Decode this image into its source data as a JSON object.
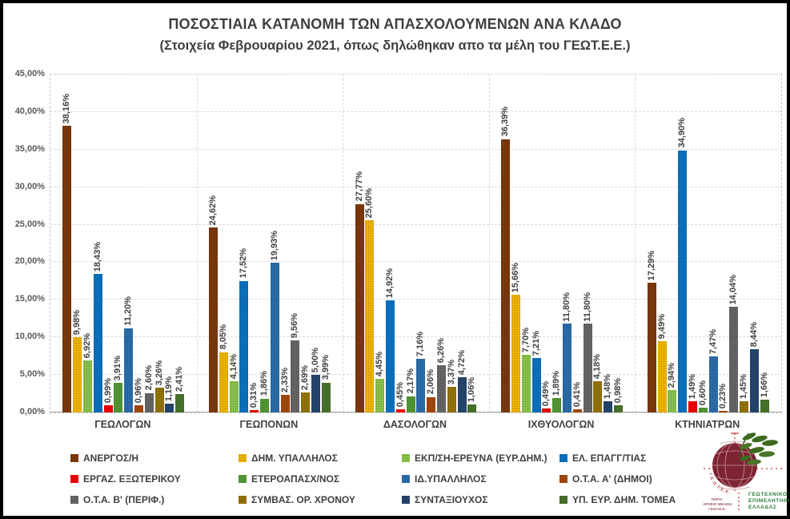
{
  "title": "ΠΟΣΟΣΤΙΑΙΑ ΚΑΤΑΝΟΜΗ ΤΩΝ ΑΠΑΣΧΟΛΟΥΜΕΝΩΝ ΑΝΑ ΚΛΑΔΟ",
  "subtitle": "(Στοιχεία Φεβρουαρίου 2021, όπως δηλώθηκαν απο τα μέλη του ΓΕΩΤ.Ε.Ε.)",
  "chart_data": {
    "type": "bar",
    "categories": [
      "ΓΕΩΛΟΓΩΝ",
      "ΓΕΩΠΟΝΩΝ",
      "ΔΑΣΟΛΟΓΩΝ",
      "ΙΧΘΥΟΛΟΓΩΝ",
      "ΚΤΗΝΙΑΤΡΩΝ"
    ],
    "series": [
      {
        "name": "ΑΝΕΡΓΟΣ/Η",
        "color": "#843C0C",
        "values": [
          38.16,
          24.62,
          27.77,
          36.39,
          17.29
        ]
      },
      {
        "name": "ΔΗΜ. ΥΠΑΛΛΗΛΟΣ",
        "color": "#FFC000",
        "values": [
          9.98,
          8.05,
          25.6,
          15.66,
          9.49
        ]
      },
      {
        "name": "ΕΚΠ/ΣΗ-ΕΡΕΥΝΑ (ΕΥΡ.ΔΗΜ.)",
        "color": "#92D050",
        "values": [
          6.92,
          4.14,
          4.45,
          7.7,
          2.94
        ]
      },
      {
        "name": "ΕΛ. ΕΠΑΓΓ/ΤΙΑΣ",
        "color": "#0D79CC",
        "values": [
          18.43,
          17.52,
          14.92,
          7.21,
          34.9
        ]
      },
      {
        "name": "ΕΡΓΑΖ. ΕΞΩΤΕΡΙΚΟΥ",
        "color": "#FE0000",
        "values": [
          0.99,
          0.31,
          0.45,
          0.49,
          1.49
        ]
      },
      {
        "name": "ΕΤΕΡΟΑΠΑΣΧ/ΝΟΣ",
        "color": "#57A237",
        "values": [
          3.91,
          1.86,
          2.17,
          1.89,
          0.6
        ]
      },
      {
        "name": "ΙΔ.ΥΠΑΛΛΗΛΟΣ",
        "color": "#2E74B5",
        "values": [
          11.2,
          19.93,
          7.16,
          11.8,
          7.47
        ]
      },
      {
        "name": "Ο.Τ.Α. Α' (ΔΗΜΟΙ)",
        "color": "#B04E0B",
        "values": [
          0.96,
          2.33,
          2.06,
          0.41,
          0.23
        ]
      },
      {
        "name": "Ο.Τ.Α. Β' (ΠΕΡΙΦ.)",
        "color": "#6C6C6C",
        "values": [
          2.6,
          9.56,
          6.26,
          11.8,
          14.04
        ]
      },
      {
        "name": "ΣΥΜΒΑΣ. ΟΡ. ΧΡΟΝΟΥ",
        "color": "#9E7B0C",
        "values": [
          3.26,
          2.69,
          3.37,
          4.18,
          1.45
        ]
      },
      {
        "name": "ΣΥΝΤΑΞΙΟΥΧΟΣ",
        "color": "#274A73",
        "values": [
          1.19,
          5.0,
          4.72,
          1.48,
          8.44
        ]
      },
      {
        "name": "ΥΠ. ΕΥΡ. ΔΗΜ. ΤΟΜΕΑ",
        "color": "#4C7A2E",
        "values": [
          2.41,
          3.99,
          1.06,
          0.98,
          1.66
        ]
      }
    ],
    "xlabel": "",
    "ylabel": "",
    "ylim": [
      0,
      45
    ],
    "ytick_step": 5,
    "ytick_labels": [
      "0,00%",
      "5,00%",
      "10,00%",
      "15,00%",
      "20,00%",
      "25,00%",
      "30,00%",
      "35,00%",
      "40,00%",
      "45,00%"
    ],
    "grid": true,
    "gridline_style": "dashed",
    "legend_position": "bottom",
    "value_label_format": "Greek decimal comma percent, rotated 90° above each bar"
  },
  "style": {
    "background": "#FFFFFF",
    "frame_color": "#000000",
    "text_color": "#3F3F3F",
    "axis_text_color": "#595959",
    "grid_color": "#D9D9D9",
    "plot_border_color": "#C6C6C6"
  },
  "logo": {
    "org_name_lines": [
      "ΓΕΩΤΕΧΝΙΚΟ",
      "ΕΠΙΜΕΛΗΤΗΡΙΟ",
      "ΕΛΛΑΔΑΣ"
    ],
    "source_lines": [
      "ΠΗΓΗ:",
      "ΑΡΧΕΙΟ ΜΕΛΩΝ",
      "ΓΕΩΤ.Ε.Ε."
    ],
    "globe_text": "Γ.Ε.Ω.Τ.Ε.Ε.",
    "colors": {
      "globe": "#7D2433",
      "leaves": "#3E6A20",
      "org_text": "#2E7D3C",
      "marks": "#C00000",
      "source_text": "#9A5560"
    }
  }
}
